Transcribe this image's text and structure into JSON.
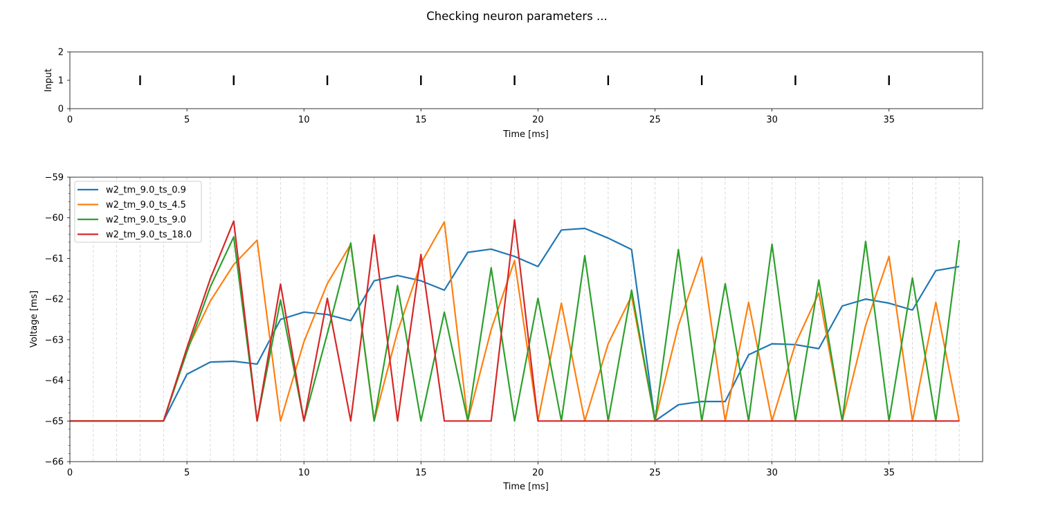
{
  "figure": {
    "title": "Checking neuron parameters ..."
  },
  "chart_data": [
    {
      "type": "event",
      "xlabel": "Time [ms]",
      "ylabel": "Input",
      "xlim": [
        0,
        39
      ],
      "ylim": [
        0,
        2
      ],
      "xticks": [
        0,
        5,
        10,
        15,
        20,
        25,
        30,
        35
      ],
      "yticks": [
        0,
        1,
        2
      ],
      "events": [
        3,
        7,
        11,
        15,
        19,
        23,
        27,
        31,
        35
      ],
      "event_level": 1,
      "event_color": "#000000",
      "grid": false
    },
    {
      "type": "line",
      "xlabel": "Time [ms]",
      "ylabel": "Voltage [ms]",
      "xlim": [
        0,
        39
      ],
      "ylim": [
        -66,
        -59
      ],
      "xticks": [
        0,
        5,
        10,
        15,
        20,
        25,
        30,
        35
      ],
      "yticks": [
        -66,
        -65,
        -64,
        -63,
        -62,
        -61,
        -60,
        -59
      ],
      "grid": "vertical dashed at every ms",
      "legend_position": "upper-left",
      "x": [
        0,
        1,
        2,
        3,
        4,
        5,
        6,
        7,
        8,
        9,
        10,
        11,
        12,
        13,
        14,
        15,
        16,
        17,
        18,
        19,
        20,
        21,
        22,
        23,
        24,
        25,
        26,
        27,
        28,
        29,
        30,
        31,
        32,
        33,
        34,
        35,
        36,
        37,
        38
      ],
      "series": [
        {
          "name": "w2_tm_9.0_ts_0.9",
          "color": "#1f77b4",
          "values": [
            -65,
            -65,
            -65,
            -65,
            -65,
            -63.85,
            -63.55,
            -63.53,
            -63.6,
            -62.5,
            -62.32,
            -62.38,
            -62.53,
            -61.55,
            -61.42,
            -61.55,
            -61.78,
            -60.85,
            -60.77,
            -60.95,
            -61.2,
            -60.3,
            -60.26,
            -60.5,
            -60.78,
            -65,
            -64.6,
            -64.52,
            -64.52,
            -63.37,
            -63.1,
            -63.12,
            -63.22,
            -62.17,
            -62,
            -62.1,
            -62.27,
            -61.3,
            -61.2
          ]
        },
        {
          "name": "w2_tm_9.0_ts_4.5",
          "color": "#ff7f0e",
          "values": [
            -65,
            -65,
            -65,
            -65,
            -65,
            -63.25,
            -62.05,
            -61.15,
            -60.55,
            -65,
            -63.05,
            -61.62,
            -60.65,
            -65,
            -62.8,
            -61.12,
            -60.1,
            -65,
            -62.75,
            -61.05,
            -65,
            -62.1,
            -65,
            -63.1,
            -61.92,
            -65,
            -62.65,
            -60.97,
            -65,
            -62.08,
            -65,
            -63.1,
            -61.85,
            -65,
            -62.65,
            -60.95,
            -65,
            -62.08,
            -65
          ]
        },
        {
          "name": "w2_tm_9.0_ts_9.0",
          "color": "#2ca02c",
          "values": [
            -65,
            -65,
            -65,
            -65,
            -65,
            -63.3,
            -61.7,
            -60.47,
            -65,
            -62.02,
            -65,
            -62.85,
            -60.62,
            -65,
            -61.67,
            -65,
            -62.32,
            -65,
            -61.23,
            -65,
            -61.98,
            -65,
            -60.93,
            -65,
            -61.78,
            -65,
            -60.78,
            -65,
            -61.62,
            -65,
            -60.65,
            -65,
            -61.53,
            -65,
            -60.58,
            -65,
            -61.48,
            -65,
            -60.55
          ]
        },
        {
          "name": "w2_tm_9.0_ts_18.0",
          "color": "#d62728",
          "values": [
            -65,
            -65,
            -65,
            -65,
            -65,
            -63.2,
            -61.5,
            -60.08,
            -65,
            -61.63,
            -65,
            -61.98,
            -65,
            -60.42,
            -65,
            -60.9,
            -65,
            -65,
            -65,
            -60.05,
            -65,
            -65,
            -65,
            -65,
            -65,
            -65,
            -65,
            -65,
            -65,
            -65,
            -65,
            -65,
            -65,
            -65,
            -65,
            -65,
            -65,
            -65,
            -65
          ]
        }
      ]
    }
  ]
}
